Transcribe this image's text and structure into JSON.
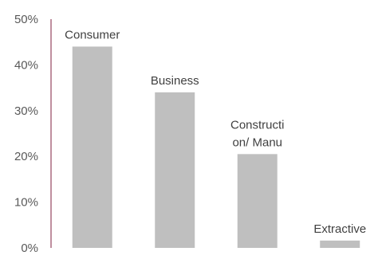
{
  "chart_data": {
    "type": "bar",
    "title": "",
    "xlabel": "",
    "ylabel": "",
    "categories": [
      "Consumer",
      "Business",
      "Constructi\non/ Manu",
      "Extractive"
    ],
    "values": [
      44,
      34,
      20.5,
      1.6
    ],
    "ylim": [
      0,
      50
    ],
    "yticks": [
      "0%",
      "10%",
      "20%",
      "30%",
      "40%",
      "50%"
    ],
    "grid": false,
    "legend": "none",
    "colors": {
      "bar": "#bfbfbf",
      "axis": "#7f1f3f",
      "text": "#595959"
    }
  }
}
